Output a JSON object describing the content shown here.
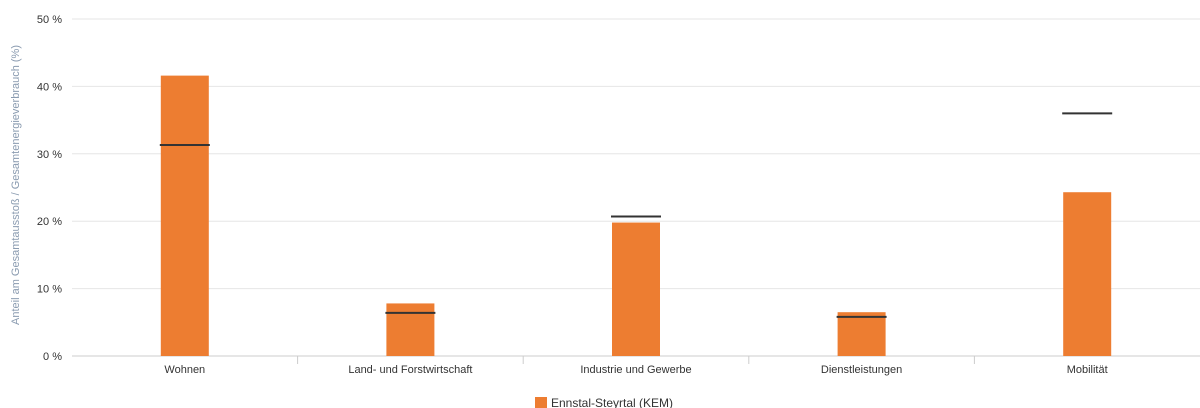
{
  "chart_data": {
    "type": "bar",
    "ylabel": "Anteil am Gesamtausstoß / Gesamtenergieverbrauch (%)",
    "ylim": [
      0,
      50
    ],
    "yticks": [
      0,
      10,
      20,
      30,
      40,
      50
    ],
    "ytick_labels": [
      "0 %",
      "10 %",
      "20 %",
      "30 %",
      "40 %",
      "50 %"
    ],
    "categories": [
      "Wohnen",
      "Land- und Forstwirtschaft",
      "Industrie und Gewerbe",
      "Dienstleistungen",
      "Mobilität"
    ],
    "series": [
      {
        "name": "Ennstal-Steyrtal (KEM)",
        "values": [
          41.6,
          7.8,
          19.8,
          6.5,
          24.3
        ],
        "color": "#ed7d31"
      }
    ],
    "reference_markers": [
      31.3,
      6.4,
      20.7,
      5.8,
      36.0
    ],
    "reference_color": "#333333",
    "grid": true,
    "legend_position": "bottom-center"
  }
}
